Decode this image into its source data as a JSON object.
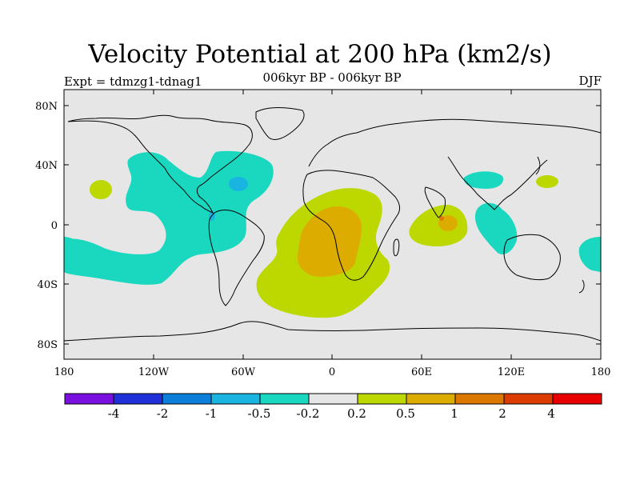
{
  "title": "Velocity Potential at 200 hPa (km2/s)",
  "subtitle": "006kyr BP - 006kyr BP",
  "expt": "Expt = tdmzg1-tdnag1",
  "season": "DJF",
  "lat_labels": [
    "80N",
    "40N",
    "0",
    "40S",
    "80S"
  ],
  "lon_labels": [
    "180",
    "120W",
    "60W",
    "0",
    "60E",
    "120E",
    "180"
  ],
  "colorbar": {
    "colors": [
      "#7a10e0",
      "#2030d8",
      "#0a7ed8",
      "#1ab4e0",
      "#1ad8c0",
      "#e6e6e6",
      "#bcd800",
      "#dcac00",
      "#dc7800",
      "#dc3c00",
      "#e80000"
    ],
    "labels": [
      "-4",
      "-2",
      "-1",
      "-0.5",
      "-0.2",
      "0.2",
      "0.5",
      "1",
      "2",
      "4"
    ]
  }
}
